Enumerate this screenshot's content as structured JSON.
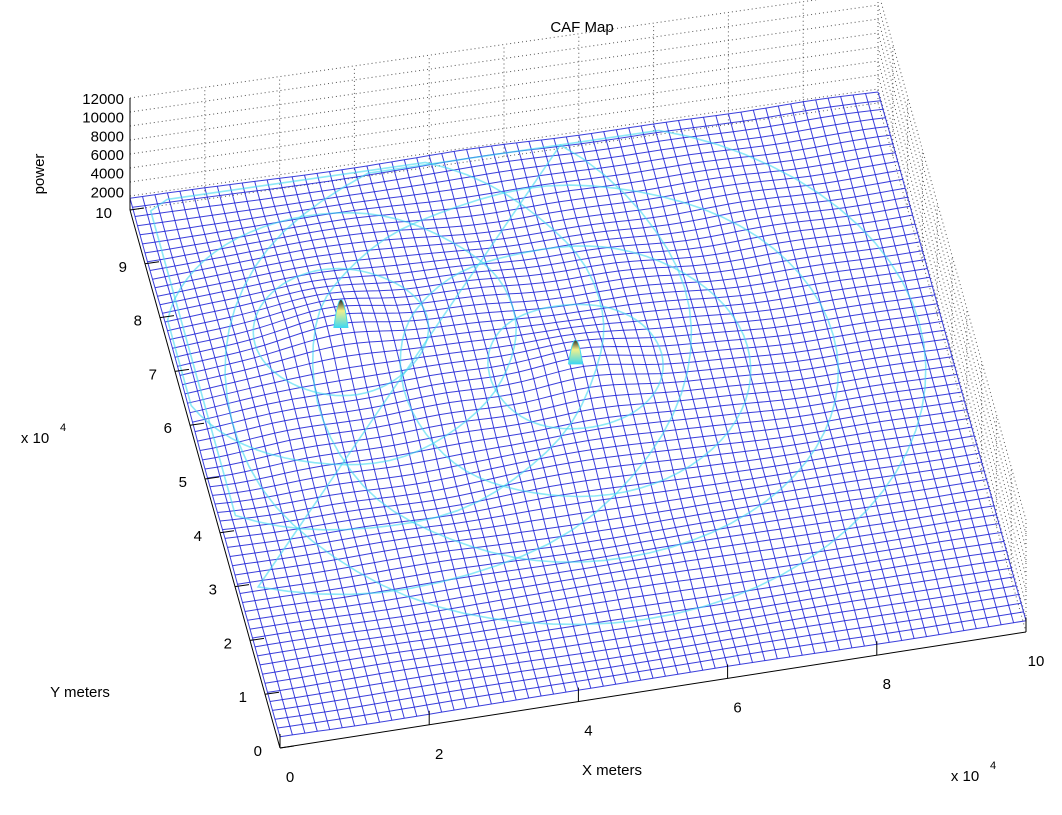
{
  "chart_data": {
    "type": "surface",
    "title": "CAF Map",
    "xlabel": "X meters",
    "ylabel": "Y meters",
    "zlabel": "power",
    "x_exponent_label": "x 10",
    "x_exponent_power": "4",
    "y_exponent_label": "x 10",
    "y_exponent_power": "4",
    "x_ticks": [
      "0",
      "2",
      "4",
      "6",
      "8",
      "10"
    ],
    "y_ticks": [
      "0",
      "1",
      "2",
      "3",
      "4",
      "5",
      "6",
      "7",
      "8",
      "9",
      "10"
    ],
    "z_ticks": [
      "2000",
      "4000",
      "6000",
      "8000",
      "10000",
      "12000"
    ],
    "xlim": [
      0,
      10
    ],
    "ylim": [
      0,
      10
    ],
    "zlim": [
      0,
      12000
    ],
    "grid": true,
    "colormap": "jet",
    "peaks": [
      {
        "x": 2.2,
        "y": 6.9,
        "power": 12000
      },
      {
        "x": 5.1,
        "y": 5.7,
        "power": 9500
      }
    ],
    "colors": {
      "mesh_low": "#1a1fd6",
      "mesh_mid": "#3fd8f0",
      "peak": "#f3f18a",
      "grid": "#555555"
    }
  }
}
